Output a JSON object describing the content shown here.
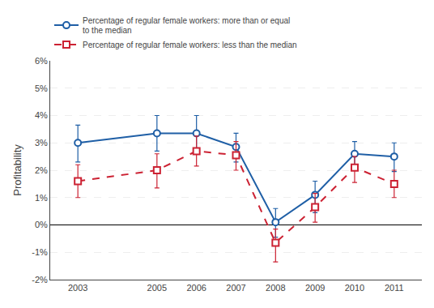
{
  "chart_data": {
    "type": "line",
    "ylabel": "Profitability",
    "x": [
      2003,
      2005,
      2006,
      2007,
      2008,
      2009,
      2010,
      2011
    ],
    "series": [
      {
        "name": "Percentage of regular female workers: more than or equal\nto the median",
        "color": "#1f5fa6",
        "marker": "circle",
        "line_style": "solid",
        "values": [
          3.0,
          3.35,
          3.35,
          2.85,
          0.1,
          1.1,
          2.6,
          2.5
        ],
        "err_lo": [
          0.7,
          0.65,
          0.6,
          0.55,
          0.55,
          0.65,
          0.55,
          0.55
        ],
        "err_hi": [
          0.65,
          0.65,
          0.65,
          0.5,
          0.5,
          0.5,
          0.45,
          0.5
        ]
      },
      {
        "name": "Percentage of regular female workers: less than the median",
        "color": "#cc2233",
        "marker": "square",
        "line_style": "dashed",
        "values": [
          1.6,
          2.0,
          2.7,
          2.55,
          -0.65,
          0.65,
          2.1,
          1.5
        ],
        "err_lo": [
          0.6,
          0.65,
          0.55,
          0.55,
          0.7,
          0.55,
          0.55,
          0.5
        ],
        "err_hi": [
          0.6,
          0.6,
          0.55,
          0.5,
          0.5,
          0.5,
          0.4,
          0.5
        ]
      }
    ],
    "xlim": [
      2002.3,
      2011.7
    ],
    "xticks": [
      2003,
      2005,
      2006,
      2007,
      2008,
      2009,
      2010,
      2011
    ],
    "ylim": [
      -2,
      6
    ],
    "yticks": [
      {
        "value": -2,
        "label": "-2%"
      },
      {
        "value": -1,
        "label": "-1%"
      },
      {
        "value": 0,
        "label": "0%"
      },
      {
        "value": 1,
        "label": "1%"
      },
      {
        "value": 2,
        "label": "2%"
      },
      {
        "value": 3,
        "label": "3%"
      },
      {
        "value": 4,
        "label": "4%"
      },
      {
        "value": 5,
        "label": "5%"
      },
      {
        "value": 6,
        "label": "6%"
      }
    ],
    "grid": true,
    "legend": "upper left"
  }
}
